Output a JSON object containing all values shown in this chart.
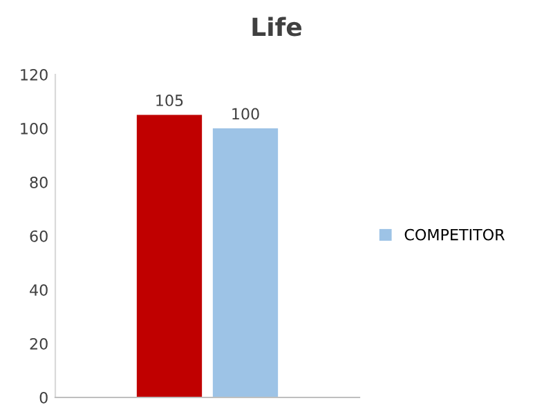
{
  "chart_data": {
    "type": "bar",
    "title": "Life",
    "categories": [
      null
    ],
    "series": [
      {
        "color": "#c00000",
        "values": [
          105
        ]
      },
      {
        "name": "COMPETITOR",
        "color": "#9dc3e6",
        "values": [
          100
        ]
      }
    ],
    "ylim": [
      0,
      120
    ],
    "yticks": [
      0,
      20,
      40,
      60,
      80,
      100,
      120
    ],
    "data_labels": true,
    "grid": false,
    "legend": "right"
  }
}
